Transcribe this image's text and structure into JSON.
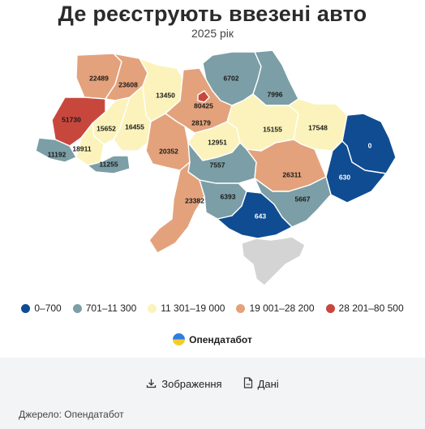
{
  "header": {
    "title": "Де реєструють ввезені авто",
    "subtitle": "2025 рік"
  },
  "colors": {
    "bin1": "#0f4c92",
    "bin2": "#7c9ea6",
    "bin3": "#fbf3bb",
    "bin4": "#e3a27c",
    "bin5": "#c8473d",
    "crimea": "#d4d4d4"
  },
  "chart_data": {
    "type": "choropleth",
    "title": "Де реєструють ввезені авто",
    "subtitle": "2025 рік",
    "legend_position": "bottom",
    "bins": [
      {
        "label": "0–700",
        "min": 0,
        "max": 700,
        "color": "#0f4c92"
      },
      {
        "label": "701–11 300",
        "min": 701,
        "max": 11300,
        "color": "#7c9ea6"
      },
      {
        "label": "11 301–19 000",
        "min": 11301,
        "max": 19000,
        "color": "#fbf3bb"
      },
      {
        "label": "19 001–28 200",
        "min": 19001,
        "max": 28200,
        "color": "#e3a27c"
      },
      {
        "label": "28 201–80 500",
        "min": 28201,
        "max": 80500,
        "color": "#c8473d"
      }
    ],
    "regions": [
      {
        "id": "volyn",
        "value": 22489
      },
      {
        "id": "rivne",
        "value": 23608
      },
      {
        "id": "zhytomyr",
        "value": 13450
      },
      {
        "id": "kyiv-oblast",
        "value": 28179
      },
      {
        "id": "kyiv-city",
        "value": 80425
      },
      {
        "id": "chernihiv",
        "value": 6702
      },
      {
        "id": "sumy",
        "value": 7996
      },
      {
        "id": "lviv",
        "value": 51730
      },
      {
        "id": "ternopil",
        "value": 15652
      },
      {
        "id": "khmelnytskyi",
        "value": 16455
      },
      {
        "id": "ivano-frankivsk",
        "value": 18911
      },
      {
        "id": "zakarpattia",
        "value": 11192
      },
      {
        "id": "chernivtsi",
        "value": 11255
      },
      {
        "id": "vinnytsia",
        "value": 20352
      },
      {
        "id": "cherkasy",
        "value": 12951
      },
      {
        "id": "poltava",
        "value": 15155
      },
      {
        "id": "kharkiv",
        "value": 17548
      },
      {
        "id": "luhansk",
        "value": 0
      },
      {
        "id": "donetsk",
        "value": 630
      },
      {
        "id": "kirovohrad",
        "value": 7557
      },
      {
        "id": "dnipropetrovsk",
        "value": 26311
      },
      {
        "id": "odesa",
        "value": 23382
      },
      {
        "id": "mykolaiv",
        "value": 6393
      },
      {
        "id": "zaporizhzhia",
        "value": 5667
      },
      {
        "id": "kherson",
        "value": 643
      },
      {
        "id": "crimea",
        "value": null
      }
    ]
  },
  "brand": {
    "name": "Опендатабот"
  },
  "footer": {
    "image_label": "Зображення",
    "data_label": "Дані",
    "source": "Джерело: Опендатабот"
  }
}
